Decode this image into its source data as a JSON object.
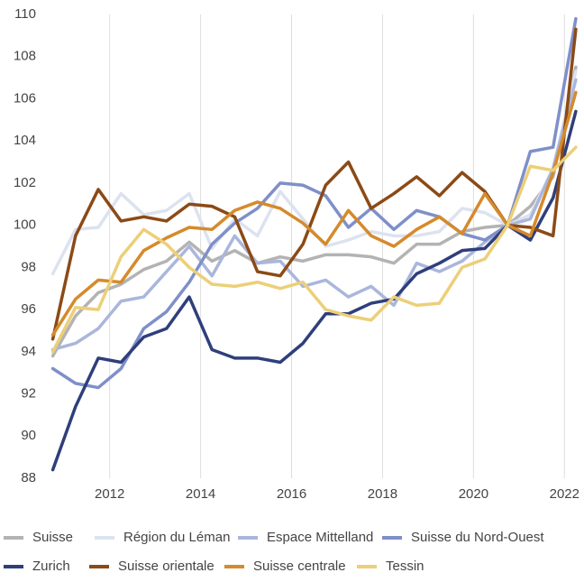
{
  "chart_data": {
    "type": "line",
    "x": [
      2010.75,
      2011.25,
      2011.75,
      2012.25,
      2012.75,
      2013.25,
      2013.75,
      2014.25,
      2014.75,
      2015.25,
      2015.75,
      2016.25,
      2016.75,
      2017.25,
      2017.75,
      2018.25,
      2018.75,
      2019.25,
      2019.75,
      2020.25,
      2020.75,
      2021.25,
      2021.75,
      2022.25
    ],
    "xlim": [
      2010.54,
      2022.43
    ],
    "xticks": [
      2012,
      2014,
      2016,
      2018,
      2020,
      2022
    ],
    "ylim": [
      88,
      110
    ],
    "yticks": [
      88,
      90,
      92,
      94,
      96,
      98,
      100,
      102,
      104,
      106,
      108,
      110
    ],
    "grid": "x",
    "legend": "bottom",
    "series": [
      {
        "name": "Suisse",
        "color": "#b3b3b3",
        "values": [
          93.8,
          95.7,
          96.8,
          97.2,
          97.9,
          98.3,
          99.2,
          98.3,
          98.8,
          98.2,
          98.5,
          98.3,
          98.6,
          98.6,
          98.5,
          98.2,
          99.1,
          99.1,
          99.7,
          99.9,
          100.0,
          100.9,
          102.3,
          107.5
        ]
      },
      {
        "name": "Région du Léman",
        "color": "#dce2f0",
        "values": [
          97.7,
          99.8,
          99.9,
          101.5,
          100.5,
          100.7,
          101.5,
          98.9,
          100.3,
          99.5,
          101.6,
          100.3,
          99.0,
          99.3,
          99.7,
          99.5,
          99.5,
          99.7,
          100.8,
          100.6,
          100.0,
          100.5,
          102.7,
          107.3
        ]
      },
      {
        "name": "Espace Mittelland",
        "color": "#aab6dc",
        "values": [
          94.1,
          94.4,
          95.1,
          96.4,
          96.6,
          97.8,
          99.0,
          97.6,
          99.5,
          98.2,
          98.3,
          97.1,
          97.4,
          96.6,
          97.1,
          96.2,
          98.2,
          97.8,
          98.3,
          99.2,
          100.0,
          100.3,
          102.7,
          106.9
        ]
      },
      {
        "name": "Suisse du Nord-Ouest",
        "color": "#7f8fc9",
        "values": [
          93.2,
          92.5,
          92.3,
          93.2,
          95.1,
          95.9,
          97.3,
          99.1,
          100.1,
          100.8,
          102.0,
          101.9,
          101.4,
          99.9,
          100.8,
          99.8,
          100.7,
          100.4,
          99.6,
          99.3,
          100.0,
          103.5,
          103.7,
          109.8
        ]
      },
      {
        "name": "Zurich",
        "color": "#2f3f7b",
        "values": [
          88.4,
          91.4,
          93.7,
          93.5,
          94.7,
          95.1,
          96.6,
          94.1,
          93.7,
          93.7,
          93.5,
          94.4,
          95.8,
          95.8,
          96.3,
          96.5,
          97.7,
          98.2,
          98.8,
          98.9,
          100.0,
          99.3,
          101.3,
          105.4
        ]
      },
      {
        "name": "Suisse orientale",
        "color": "#8b4a16",
        "values": [
          94.6,
          99.5,
          101.7,
          100.2,
          100.4,
          100.2,
          101.0,
          100.9,
          100.4,
          97.8,
          97.6,
          99.1,
          101.9,
          103.0,
          100.8,
          101.5,
          102.3,
          101.4,
          102.5,
          101.6,
          100.0,
          99.9,
          99.5,
          109.3
        ]
      },
      {
        "name": "Suisse centrale",
        "color": "#d58a2b",
        "values": [
          94.8,
          96.5,
          97.4,
          97.3,
          98.8,
          99.4,
          99.9,
          99.8,
          100.7,
          101.1,
          100.8,
          100.1,
          99.1,
          100.7,
          99.5,
          99.0,
          99.8,
          100.4,
          99.6,
          101.5,
          100.0,
          99.5,
          102.5,
          106.3
        ]
      },
      {
        "name": "Tessin",
        "color": "#eccf78",
        "values": [
          94.0,
          96.1,
          96.0,
          98.5,
          99.8,
          99.1,
          98.0,
          97.2,
          97.1,
          97.3,
          97.0,
          97.3,
          96.0,
          95.7,
          95.5,
          96.6,
          96.2,
          96.3,
          98.0,
          98.4,
          100.0,
          102.8,
          102.6,
          103.7
        ]
      }
    ]
  }
}
